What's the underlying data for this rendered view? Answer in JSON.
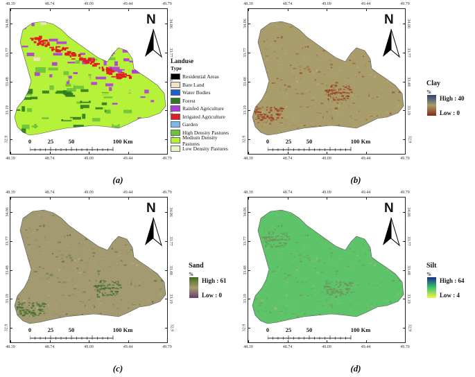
{
  "panels": [
    {
      "id": "a",
      "caption": "(a)",
      "fill_kind": "landuse",
      "top_ticks": [
        "48.39",
        "48.74",
        "49.09",
        "49.44",
        "49.79"
      ],
      "bottom_ticks": [
        "48.39",
        "48.74",
        "49.09",
        "49.44",
        "49.79"
      ],
      "left_ticks": [
        "34.06",
        "33.77",
        "33.48",
        "33.19",
        "32.9"
      ],
      "right_ticks": [
        "34.06",
        "33.77",
        "33.48",
        "33.19",
        "32.9"
      ]
    },
    {
      "id": "b",
      "caption": "(b)",
      "fill_kind": "clay",
      "top_ticks": [
        "48.39",
        "48.74",
        "49.09",
        "49.44",
        "49.79"
      ],
      "bottom_ticks": [
        "48.39",
        "48.74",
        "49.09",
        "49.44",
        "49.79"
      ],
      "left_ticks": [
        "34.06",
        "33.77",
        "33.48",
        "33.19",
        "32.9"
      ],
      "right_ticks": [
        "34.06",
        "33.77",
        "33.48",
        "33.19",
        "32.9"
      ]
    },
    {
      "id": "c",
      "caption": "(c)",
      "fill_kind": "sand",
      "top_ticks": [
        "48.39",
        "48.74",
        "49.09",
        "49.44",
        "49.79"
      ],
      "bottom_ticks": [
        "48.39",
        "48.74",
        "49.09",
        "49.44",
        "49.79"
      ],
      "left_ticks": [
        "34.06",
        "33.77",
        "33.48",
        "33.19",
        "32.9"
      ],
      "right_ticks": [
        "34.06",
        "33.77",
        "33.48",
        "33.19",
        "32.9"
      ]
    },
    {
      "id": "d",
      "caption": "(d)",
      "fill_kind": "silt",
      "top_ticks": [
        "48.39",
        "48.74",
        "49.09",
        "49.44",
        "49.79"
      ],
      "bottom_ticks": [
        "48.39",
        "48.74",
        "49.09",
        "49.44",
        "49.79"
      ],
      "left_ticks": [
        "34.06",
        "33.77",
        "33.48",
        "33.19",
        "32.9"
      ],
      "right_ticks": [
        "34.06",
        "33.77",
        "33.48",
        "33.19",
        "32.9"
      ]
    }
  ],
  "north_letter": "N",
  "scale_labels": [
    "0",
    "25",
    "50",
    "100 Km"
  ],
  "legend_landuse": {
    "title": "Landuse",
    "subtitle": "Type",
    "items": [
      {
        "label": "Residential Areas",
        "color": "#000000"
      },
      {
        "label": "Bare Land",
        "color": "#f3e3c3"
      },
      {
        "label": "Water Bodies",
        "color": "#1f5fd6"
      },
      {
        "label": "Forest",
        "color": "#2f7a1f"
      },
      {
        "label": "Rainfed Agriculture",
        "color": "#b23ad9"
      },
      {
        "label": "Irrigated Agriculture",
        "color": "#e02020"
      },
      {
        "label": "Garden",
        "color": "#7eb6e8"
      },
      {
        "label": "High Density Pastures",
        "color": "#6cc23a"
      },
      {
        "label": "Medium Density Pastures",
        "color": "#b6f23a"
      },
      {
        "label": "Low Density Pastures",
        "color": "#e6f6c0"
      }
    ]
  },
  "colorbars": {
    "clay": {
      "title": "Clay",
      "unit": "%",
      "high": "High : 40",
      "low": "Low : 0",
      "colors": [
        "#2e3f77",
        "#a79b6a",
        "#8a2a10"
      ]
    },
    "sand": {
      "title": "Sand",
      "unit": "%",
      "high": "High : 61",
      "low": "Low : 0",
      "colors": [
        "#3d6b1f",
        "#a89d70",
        "#6a3b6a"
      ]
    },
    "silt": {
      "title": "Silt",
      "unit": "%",
      "high": "High : 64",
      "low": "Low : 4",
      "colors": [
        "#1a2c8c",
        "#3dc46a",
        "#f4f44a"
      ]
    }
  },
  "map_colors": {
    "clay_base": "#a99d6c",
    "clay_dark": "#9c3a1a",
    "sand_base": "#a39a72",
    "sand_dark": "#3e6d24",
    "silt_base": "#5dc46a",
    "silt_dark": "#6f8f5a"
  }
}
